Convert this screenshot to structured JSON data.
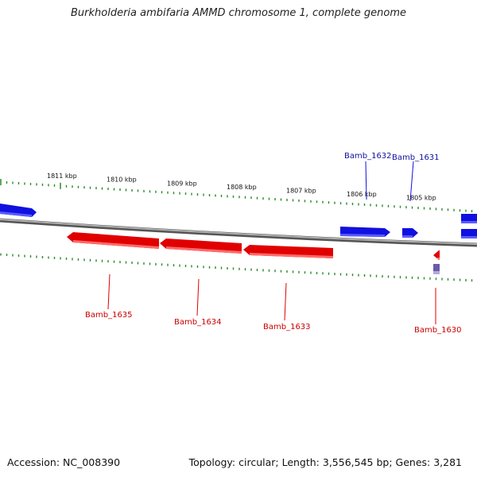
{
  "title": "Burkholderia ambifaria AMMD chromosome 1, complete genome",
  "footer": {
    "accession": "Accession: NC_008390",
    "summary": "Topology: circular; Length: 3,556,545 bp; Genes: 3,281"
  },
  "colors": {
    "forward": "#1010e0",
    "reverse": "#e00000",
    "tick": "#2a8a2a",
    "backbone": "#8a8a8a",
    "other": "#6a5aa8"
  },
  "tick_labels": [
    "1811 kbp",
    "1810 kbp",
    "1809 kbp",
    "1808 kbp",
    "1807 kbp",
    "1806 kbp",
    "1805 kbp"
  ],
  "genes_forward": [
    "Bamb_1632",
    "Bamb_1631"
  ],
  "genes_reverse": [
    "Bamb_1635",
    "Bamb_1634",
    "Bamb_1633",
    "Bamb_1630"
  ]
}
